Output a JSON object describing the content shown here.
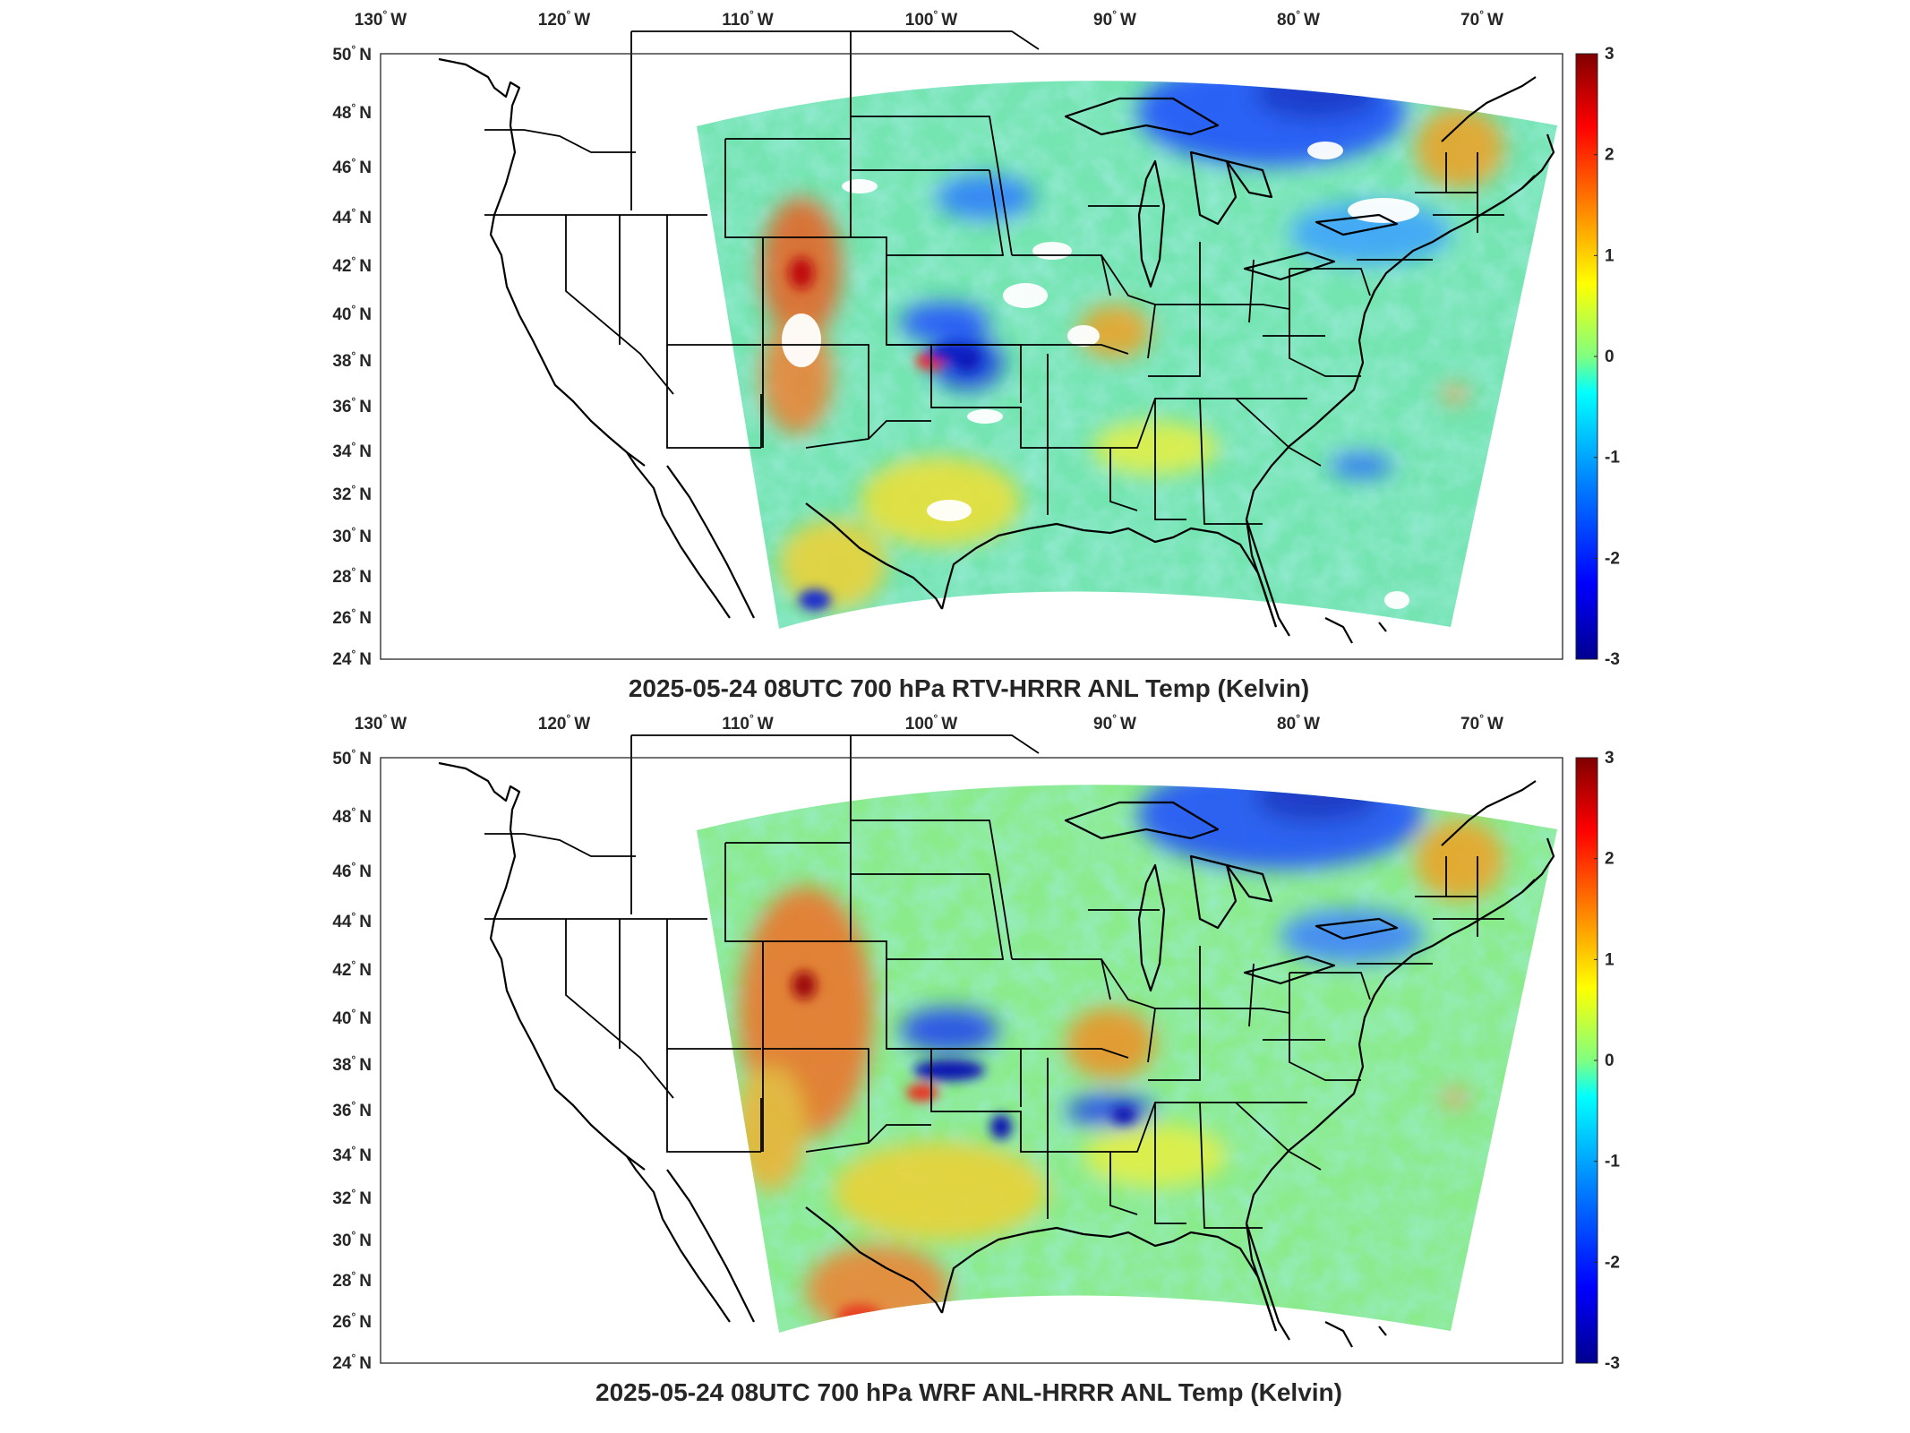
{
  "figure": {
    "panels": [
      {
        "id": "top",
        "title": "2025-05-24 08UTC 700 hPa RTV-HRRR ANL Temp (Kelvin)",
        "has_missing_data": true
      },
      {
        "id": "bottom",
        "title": "2025-05-24 08UTC 700 hPa WRF ANL-HRRR ANL Temp (Kelvin)",
        "has_missing_data": false
      }
    ],
    "lon_ticks": [
      {
        "value": "130",
        "hemi": "W"
      },
      {
        "value": "120",
        "hemi": "W"
      },
      {
        "value": "110",
        "hemi": "W"
      },
      {
        "value": "100",
        "hemi": "W"
      },
      {
        "value": "90",
        "hemi": "W"
      },
      {
        "value": "80",
        "hemi": "W"
      },
      {
        "value": "70",
        "hemi": "W"
      }
    ],
    "lat_ticks": [
      {
        "value": "50",
        "hemi": "N"
      },
      {
        "value": "48",
        "hemi": "N"
      },
      {
        "value": "46",
        "hemi": "N"
      },
      {
        "value": "44",
        "hemi": "N"
      },
      {
        "value": "42",
        "hemi": "N"
      },
      {
        "value": "40",
        "hemi": "N"
      },
      {
        "value": "38",
        "hemi": "N"
      },
      {
        "value": "36",
        "hemi": "N"
      },
      {
        "value": "34",
        "hemi": "N"
      },
      {
        "value": "32",
        "hemi": "N"
      },
      {
        "value": "30",
        "hemi": "N"
      },
      {
        "value": "28",
        "hemi": "N"
      },
      {
        "value": "26",
        "hemi": "N"
      },
      {
        "value": "24",
        "hemi": "N"
      }
    ],
    "degree_symbol": "°",
    "colorbar": {
      "min": -3,
      "max": 3,
      "ticks": [
        "3",
        "2",
        "1",
        "0",
        "-1",
        "-2",
        "-3"
      ],
      "colormap": [
        "#00008f",
        "#0000ff",
        "#0080ff",
        "#00ffff",
        "#80ff80",
        "#ffff00",
        "#ff8000",
        "#ff0000",
        "#800000"
      ]
    },
    "map_colors": {
      "background": "#ffffff",
      "coastline": "#000000",
      "field_base": "#6fe0a6",
      "cold_anomaly": "#1030e0",
      "warm_anomaly": "#e84020"
    }
  }
}
